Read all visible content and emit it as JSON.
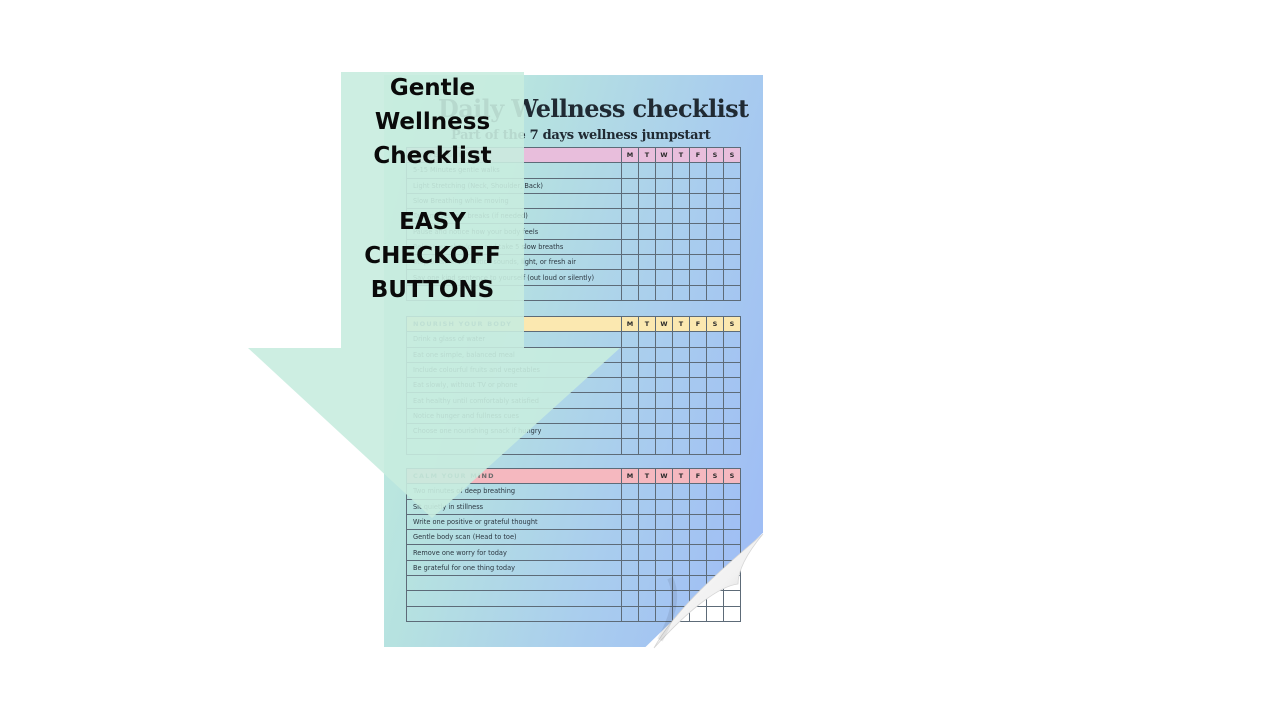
{
  "overlay": {
    "title_lines": [
      "Gentle",
      "Wellness",
      "Checklist"
    ],
    "subtitle_lines": [
      "EASY",
      "CHECKOFF",
      "BUTTONS"
    ]
  },
  "sheet": {
    "title": "Daily Wellness checklist",
    "subtitle": "Part of the 7 days wellness jumpstart",
    "days": [
      "M",
      "T",
      "W",
      "T",
      "F",
      "S",
      "S"
    ],
    "sections": [
      {
        "heading": "MOVE (GENTLE)",
        "color": "#e8bedc",
        "items": [
          "5-15 Minutes gentle walks",
          "Light Stretching (Neck, Shoulder, Back)",
          "Slow Breathing while moving",
          "Take movement breaks (if needed)",
          "Pause and notice how your body feels",
          "Relax your shoulders and take 5 slow breaths",
          "Step outside and notice sounds, light, or fresh air",
          "Say one kind sentence to yourself (out loud or silently)",
          ""
        ]
      },
      {
        "heading": "NOURISH YOUR BODY",
        "color": "#fbe8b0",
        "items": [
          "Drink a glass of water",
          "Eat one simple, balanced meal",
          "Include colourful fruits and vegetables",
          "Eat slowly, without TV or phone",
          "Eat healthy until comfortably satisfied",
          "Notice hunger and fullness cues",
          "Choose one nourishing snack if hungry",
          ""
        ]
      },
      {
        "heading": "CALM YOUR MIND",
        "color": "#f5b8bf",
        "items": [
          "Two minutes of deep breathing",
          "Sit quietly in stillness",
          "Write one positive or grateful thought",
          "Gentle body scan (Head to toe)",
          "Remove one worry for today",
          "Be grateful for one thing today",
          "",
          "",
          ""
        ]
      }
    ]
  },
  "colors": {
    "overlay_arrow": "#c8ecdf",
    "paper_start": "#c6f1dc",
    "paper_end": "#9dbaf6"
  }
}
